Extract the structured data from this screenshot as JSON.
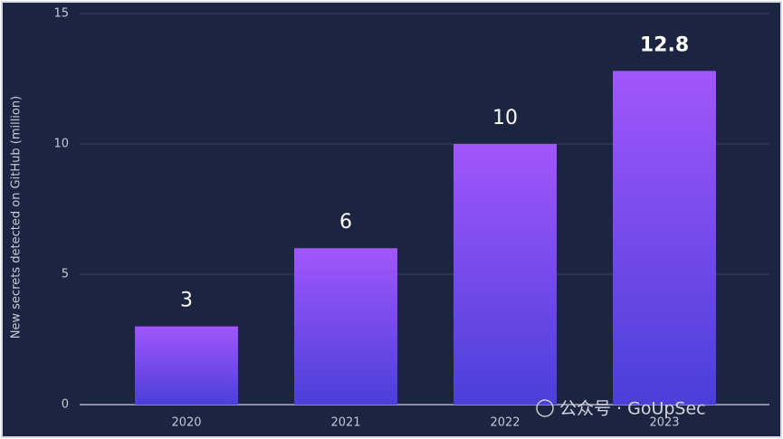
{
  "chart_data": {
    "type": "bar",
    "y_label": "New secrets detected on GitHub (million)",
    "categories": [
      "2020",
      "2021",
      "2022",
      "2023"
    ],
    "values": [
      3,
      6,
      10,
      12.8
    ],
    "gradient": [
      "#a156fb",
      "#4a3fd8"
    ],
    "ylim": [
      0,
      15
    ],
    "yticks": [
      0,
      5,
      10,
      15
    ],
    "grid": true,
    "watermark": "公众号 · GoUpSec"
  }
}
